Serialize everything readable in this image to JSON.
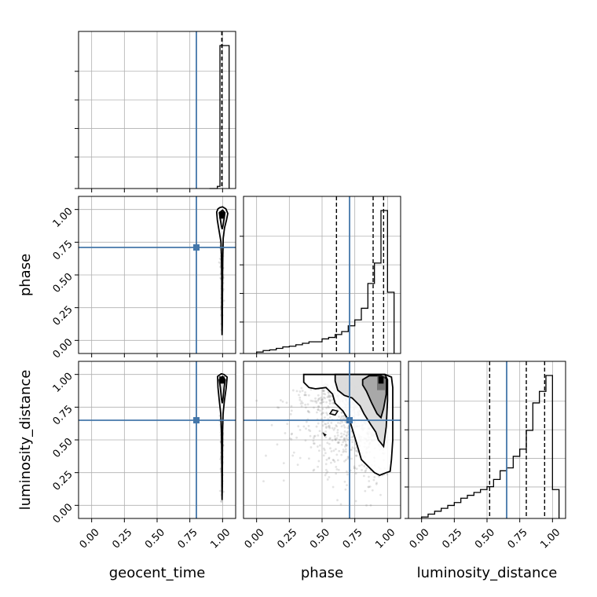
{
  "chart_data": {
    "type": "corner",
    "parameters": [
      "geocent_time",
      "phase",
      "luminosity_distance"
    ],
    "tick_labels": [
      "0.00",
      "0.25",
      "0.50",
      "0.75",
      "1.00"
    ],
    "axis_range": [
      -0.1,
      1.1
    ],
    "grid": true,
    "colors": {
      "truth": "#4477aa",
      "histogram": "#000000",
      "scatter": "#808080"
    },
    "truths": {
      "geocent_time": 0.8,
      "phase": 0.71,
      "luminosity_distance": 0.65
    },
    "quantiles": {
      "geocent_time": [
        0.995,
        0.995,
        0.995
      ],
      "phase": [
        0.61,
        0.89,
        0.97
      ],
      "luminosity_distance": [
        0.52,
        0.8,
        0.94
      ]
    },
    "histograms": {
      "geocent_time": {
        "edges": [
          0.9,
          0.96,
          0.98,
          1.05
        ],
        "counts": [
          0,
          0.015,
          1.0
        ]
      },
      "phase": {
        "edges": [
          0.0,
          0.05,
          0.1,
          0.15,
          0.2,
          0.25,
          0.3,
          0.35,
          0.4,
          0.45,
          0.5,
          0.55,
          0.6,
          0.65,
          0.7,
          0.75,
          0.8,
          0.85,
          0.9,
          0.95,
          1.0,
          1.05
        ],
        "counts": [
          0.01,
          0.02,
          0.025,
          0.035,
          0.045,
          0.05,
          0.06,
          0.07,
          0.08,
          0.08,
          0.1,
          0.11,
          0.13,
          0.15,
          0.19,
          0.23,
          0.31,
          0.48,
          0.62,
          0.98,
          0.42
        ]
      },
      "luminosity_distance": {
        "edges": [
          0.0,
          0.05,
          0.1,
          0.15,
          0.2,
          0.25,
          0.3,
          0.35,
          0.4,
          0.45,
          0.5,
          0.55,
          0.6,
          0.65,
          0.7,
          0.75,
          0.8,
          0.85,
          0.9,
          0.95,
          1.0,
          1.05
        ],
        "counts": [
          0.01,
          0.03,
          0.05,
          0.07,
          0.09,
          0.11,
          0.14,
          0.16,
          0.18,
          0.2,
          0.22,
          0.27,
          0.33,
          0.35,
          0.43,
          0.48,
          0.61,
          0.8,
          0.88,
          0.99,
          0.2
        ]
      }
    },
    "contour_levels": [
      {
        "pair": "phase|geocent_time",
        "outer": [
          [
            0.965,
            1.005
          ],
          [
            0.955,
            0.98
          ],
          [
            0.96,
            0.92
          ],
          [
            0.968,
            0.87
          ],
          [
            0.978,
            0.81
          ],
          [
            0.988,
            0.75
          ],
          [
            0.992,
            0.62
          ],
          [
            0.994,
            0.48
          ],
          [
            0.994,
            0.28
          ],
          [
            0.995,
            0.12
          ],
          [
            0.996,
            0.04
          ],
          [
            0.998,
            0.12
          ],
          [
            0.999,
            0.3
          ],
          [
            1.0,
            0.5
          ],
          [
            1.002,
            0.66
          ],
          [
            1.005,
            0.78
          ],
          [
            1.015,
            0.86
          ],
          [
            1.03,
            0.92
          ],
          [
            1.04,
            0.97
          ],
          [
            1.025,
            1.005
          ],
          [
            1.0,
            1.02
          ],
          [
            0.98,
            1.015
          ]
        ],
        "inner": [
          [
            0.975,
            0.975
          ],
          [
            0.982,
            0.93
          ],
          [
            0.99,
            0.88
          ],
          [
            0.997,
            0.85
          ],
          [
            1.004,
            0.88
          ],
          [
            1.012,
            0.93
          ],
          [
            1.018,
            0.975
          ],
          [
            1.0,
            0.995
          ]
        ]
      },
      {
        "pair": "luminosity_distance|geocent_time",
        "outer": [
          [
            0.962,
            0.985
          ],
          [
            0.965,
            0.9
          ],
          [
            0.975,
            0.8
          ],
          [
            0.986,
            0.7
          ],
          [
            0.992,
            0.55
          ],
          [
            0.994,
            0.35
          ],
          [
            0.995,
            0.14
          ],
          [
            0.996,
            0.04
          ],
          [
            0.998,
            0.14
          ],
          [
            0.999,
            0.36
          ],
          [
            1.0,
            0.56
          ],
          [
            1.004,
            0.7
          ],
          [
            1.014,
            0.8
          ],
          [
            1.028,
            0.9
          ],
          [
            1.035,
            0.98
          ],
          [
            1.01,
            1.0
          ],
          [
            0.99,
            1.005
          ]
        ],
        "inner": [
          [
            0.975,
            0.96
          ],
          [
            0.983,
            0.9
          ],
          [
            0.992,
            0.81
          ],
          [
            0.998,
            0.78
          ],
          [
            1.004,
            0.82
          ],
          [
            1.012,
            0.9
          ],
          [
            1.02,
            0.96
          ],
          [
            1.0,
            0.985
          ]
        ]
      },
      {
        "pair": "luminosity_distance|phase",
        "outer": [
          [
            0.36,
            1.0
          ],
          [
            0.42,
            1.0
          ],
          [
            0.55,
            1.0
          ],
          [
            0.7,
            1.0
          ],
          [
            0.85,
            1.0
          ],
          [
            0.98,
            1.0
          ],
          [
            1.03,
            0.98
          ],
          [
            1.04,
            0.9
          ],
          [
            1.04,
            0.7
          ],
          [
            1.04,
            0.5
          ],
          [
            1.03,
            0.35
          ],
          [
            1.02,
            0.26
          ],
          [
            0.99,
            0.25
          ],
          [
            0.94,
            0.23
          ],
          [
            0.9,
            0.25
          ],
          [
            0.85,
            0.3
          ],
          [
            0.8,
            0.35
          ],
          [
            0.78,
            0.42
          ],
          [
            0.75,
            0.52
          ],
          [
            0.72,
            0.62
          ],
          [
            0.66,
            0.72
          ],
          [
            0.6,
            0.78
          ],
          [
            0.58,
            0.85
          ],
          [
            0.53,
            0.9
          ],
          [
            0.45,
            0.89
          ],
          [
            0.4,
            0.9
          ],
          [
            0.36,
            0.94
          ]
        ],
        "inner": [
          [
            0.6,
            1.0
          ],
          [
            0.7,
            1.0
          ],
          [
            0.85,
            1.0
          ],
          [
            0.98,
            1.0
          ],
          [
            1.0,
            0.96
          ],
          [
            1.0,
            0.8
          ],
          [
            0.99,
            0.6
          ],
          [
            0.97,
            0.45
          ],
          [
            0.93,
            0.5
          ],
          [
            0.91,
            0.56
          ],
          [
            0.87,
            0.62
          ],
          [
            0.82,
            0.7
          ],
          [
            0.79,
            0.76
          ],
          [
            0.73,
            0.82
          ],
          [
            0.67,
            0.84
          ],
          [
            0.62,
            0.88
          ],
          [
            0.6,
            0.95
          ]
        ],
        "core": [
          [
            0.81,
            0.96
          ],
          [
            0.86,
            0.99
          ],
          [
            0.95,
            0.99
          ],
          [
            0.99,
            0.97
          ],
          [
            0.99,
            0.85
          ],
          [
            0.97,
            0.74
          ],
          [
            0.95,
            0.67
          ],
          [
            0.92,
            0.7
          ],
          [
            0.88,
            0.78
          ],
          [
            0.84,
            0.87
          ],
          [
            0.81,
            0.92
          ]
        ],
        "islands": [
          [
            0.58,
            0.73
          ],
          [
            0.62,
            0.72
          ],
          [
            0.6,
            0.69
          ],
          [
            0.56,
            0.7
          ],
          [
            0.58,
            0.73
          ]
        ]
      }
    ]
  }
}
